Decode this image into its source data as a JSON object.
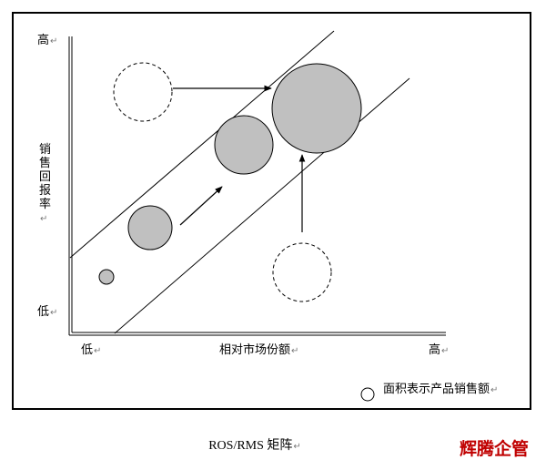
{
  "labels": {
    "y_high": "高",
    "y_low": "低",
    "y_axis": "销售回报率",
    "x_low": "低",
    "x_axis": "相对市场份额",
    "x_high": "高",
    "legend": "面积表示产品销售额",
    "return_mark": "↵"
  },
  "caption": "ROS/RMS 矩阵",
  "brand": "辉腾企管",
  "colors": {
    "bubble_fill": "#c0c0c0",
    "line": "#000000",
    "brand": "#c00000"
  }
}
